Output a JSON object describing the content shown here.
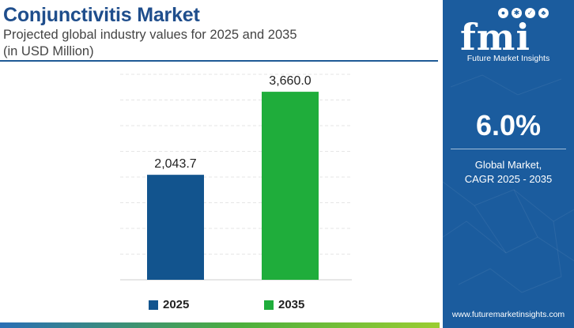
{
  "header": {
    "title": "Conjunctivitis Market",
    "subtitle_line1": "Projected global industry values for 2025 and 2035",
    "subtitle_line2": "(in USD Million)"
  },
  "chart_data": {
    "type": "bar",
    "categories": [
      "2025",
      "2035"
    ],
    "values": [
      2043.7,
      3660.0
    ],
    "value_labels": [
      "2,043.7",
      "3,660.0"
    ],
    "colors": [
      "#12548e",
      "#1fad3b"
    ],
    "ylim": [
      0,
      4000
    ],
    "grid": true,
    "legend_position": "bottom",
    "title": "",
    "xlabel": "",
    "ylabel": ""
  },
  "legend": {
    "items": [
      {
        "label": "2025",
        "color": "#12548e"
      },
      {
        "label": "2035",
        "color": "#1fad3b"
      }
    ]
  },
  "sidebar": {
    "logo_text": "fmi",
    "logo_tagline": "Future Market Insights",
    "cagr_value": "6.0%",
    "cagr_label_line1": "Global Market,",
    "cagr_label_line2": "CAGR 2025 - 2035",
    "website": "www.futuremarketinsights.com",
    "background_color": "#1b5c9e"
  }
}
